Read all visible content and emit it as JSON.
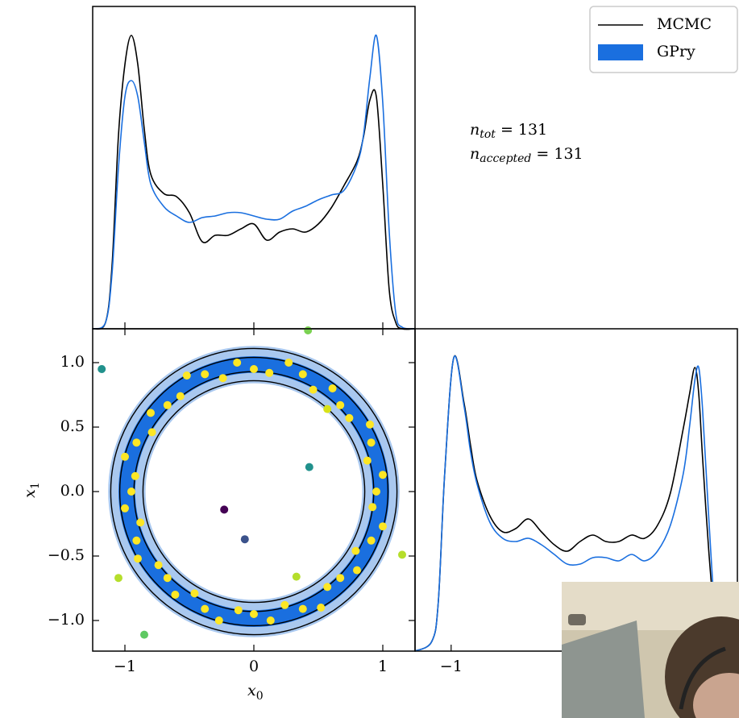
{
  "chart_data": [
    {
      "type": "line",
      "x": [
        -1.25,
        -1.15,
        -1.1,
        -1.05,
        -1,
        -0.95,
        -0.9,
        -0.85,
        -0.8,
        -0.7,
        -0.6,
        -0.5,
        -0.4,
        -0.3,
        -0.2,
        -0.1,
        0,
        0.1,
        0.2,
        0.3,
        0.4,
        0.5,
        0.6,
        0.7,
        0.8,
        0.85,
        0.9,
        0.95,
        1,
        1.05,
        1.1,
        1.15,
        1.25
      ],
      "series": [
        {
          "name": "MCMC",
          "color": "#000000",
          "values": [
            0,
            0.02,
            0.195,
            0.6,
            0.82,
            0.91,
            0.82,
            0.62,
            0.48,
            0.42,
            0.41,
            0.36,
            0.27,
            0.29,
            0.29,
            0.31,
            0.325,
            0.275,
            0.3,
            0.31,
            0.3,
            0.325,
            0.375,
            0.445,
            0.52,
            0.595,
            0.71,
            0.72,
            0.445,
            0.12,
            0.02,
            0,
            0
          ]
        },
        {
          "name": "GPry",
          "color": "#1a6fdf",
          "values": [
            0,
            0.02,
            0.17,
            0.5,
            0.72,
            0.77,
            0.72,
            0.58,
            0.45,
            0.38,
            0.35,
            0.33,
            0.345,
            0.35,
            0.36,
            0.36,
            0.35,
            0.34,
            0.34,
            0.365,
            0.38,
            0.4,
            0.415,
            0.43,
            0.51,
            0.6,
            0.78,
            0.91,
            0.7,
            0.3,
            0.05,
            0.005,
            0
          ]
        }
      ],
      "xlim": [
        -1.25,
        1.25
      ],
      "ylim": [
        0,
        1
      ],
      "xticks": [
        {
          "value": -1,
          "label": "−1"
        },
        0,
        1
      ],
      "legend": "upper right",
      "annotations": [
        {
          "symbol": "n",
          "subscript": "tot",
          "text": "= 131"
        },
        {
          "symbol": "n",
          "subscript": "accepted",
          "text": "= 131"
        }
      ]
    },
    {
      "type": "scatter",
      "xlabel": {
        "text": "x",
        "subscript": "0"
      },
      "ylabel": {
        "text": "x",
        "subscript": "1"
      },
      "xlim": [
        -1.25,
        1.25
      ],
      "ylim": [
        -1.2375,
        1.2625
      ],
      "xticks": [
        {
          "value": -1,
          "label": "−1"
        },
        0,
        1
      ],
      "yticks": [
        {
          "value": -1,
          "label": "−1.0"
        },
        {
          "value": -0.5,
          "label": "−0.5"
        },
        {
          "value": 0,
          "label": "0.0"
        },
        0.5,
        {
          "value": 1,
          "label": "1.0"
        }
      ],
      "filled_contours": [
        {
          "color": "#a9c8ef",
          "outer": 1.13,
          "inner": 0.84
        },
        {
          "color": "#1a6fdf",
          "outer": 1.05,
          "inner": 0.92
        }
      ],
      "line_contours": {
        "color": "#000000",
        "radii": [
          0.86,
          0.93,
          1.04,
          1.11
        ]
      },
      "points": {
        "x": [
          0.95,
          1.0,
          0.88,
          0.91,
          0.9,
          0.74,
          0.67,
          0.61,
          0.46,
          0.38,
          0.27,
          0.12,
          0,
          -0.13,
          -0.24,
          -0.38,
          -0.52,
          -0.57,
          -0.67,
          -0.8,
          -0.79,
          -0.91,
          -1.0,
          -0.92,
          -0.95,
          -1.0,
          -0.88,
          -0.91,
          -0.9,
          -0.74,
          -0.67,
          -0.61,
          -0.46,
          -0.38,
          -0.27,
          -0.12,
          0,
          0.13,
          0.24,
          0.38,
          0.52,
          0.57,
          0.67,
          0.8,
          0.79,
          0.91,
          1.0,
          0.92,
          -1.18,
          0.43,
          -0.23,
          -0.07,
          -1.05,
          -0.85,
          0.33,
          1.15,
          0.42,
          0.57
        ],
        "y": [
          0,
          0.13,
          0.24,
          0.38,
          0.52,
          0.57,
          0.67,
          0.8,
          0.79,
          0.91,
          1.0,
          0.92,
          0.95,
          1.0,
          0.88,
          0.91,
          0.9,
          0.74,
          0.67,
          0.61,
          0.46,
          0.38,
          0.27,
          0.12,
          0,
          -0.13,
          -0.24,
          -0.38,
          -0.52,
          -0.57,
          -0.67,
          -0.8,
          -0.79,
          -0.91,
          -1.0,
          -0.92,
          -0.95,
          -1.0,
          -0.88,
          -0.91,
          -0.9,
          -0.74,
          -0.67,
          -0.61,
          -0.46,
          -0.38,
          -0.27,
          -0.12,
          0.95,
          0.19,
          -0.14,
          -0.37,
          -0.67,
          -1.11,
          -0.66,
          -0.49,
          1.25,
          0.64
        ],
        "colors": [
          "#fde725",
          "#fde725",
          "#fde725",
          "#fde725",
          "#fde725",
          "#fde725",
          "#fde725",
          "#fde725",
          "#fde725",
          "#fde725",
          "#fde725",
          "#fde725",
          "#fde725",
          "#fde725",
          "#fde725",
          "#fde725",
          "#fde725",
          "#fde725",
          "#fde725",
          "#fde725",
          "#fde725",
          "#fde725",
          "#fde725",
          "#fde725",
          "#fde725",
          "#fde725",
          "#fde725",
          "#fde725",
          "#fde725",
          "#fde725",
          "#fde725",
          "#fde725",
          "#fde725",
          "#fde725",
          "#fde725",
          "#fde725",
          "#fde725",
          "#fde725",
          "#fde725",
          "#fde725",
          "#fde725",
          "#fde725",
          "#fde725",
          "#fde725",
          "#fde725",
          "#fde725",
          "#fde725",
          "#fde725",
          "#21918c",
          "#21918c",
          "#440154",
          "#3b528b",
          "#b5de2b",
          "#5ec962",
          "#b5de2b",
          "#b5de2b",
          "#7ad151",
          "#d8e219"
        ]
      }
    },
    {
      "type": "line",
      "x": [
        -1.28,
        -1.15,
        -1.1,
        -1.05,
        -0.98,
        -0.9,
        -0.85,
        -0.8,
        -0.7,
        -0.6,
        -0.5,
        -0.4,
        -0.3,
        -0.2,
        -0.1,
        0,
        0.1,
        0.2,
        0.3,
        0.4,
        0.5,
        0.6,
        0.7,
        0.8,
        0.85,
        0.89,
        0.92,
        0.95,
        1.0,
        1.05,
        1.1,
        1.22
      ],
      "series": [
        {
          "color": "#000000",
          "values": [
            0,
            0.03,
            0.15,
            0.55,
            0.91,
            0.77,
            0.64,
            0.53,
            0.42,
            0.37,
            0.38,
            0.41,
            0.37,
            0.33,
            0.31,
            0.34,
            0.36,
            0.34,
            0.34,
            0.36,
            0.35,
            0.39,
            0.49,
            0.69,
            0.8,
            0.88,
            0.8,
            0.6,
            0.3,
            0.08,
            0.02,
            0
          ]
        },
        {
          "color": "#1a6fdf",
          "values": [
            0,
            0.03,
            0.15,
            0.55,
            0.91,
            0.76,
            0.62,
            0.52,
            0.4,
            0.35,
            0.34,
            0.35,
            0.33,
            0.3,
            0.27,
            0.27,
            0.29,
            0.29,
            0.28,
            0.3,
            0.28,
            0.31,
            0.39,
            0.55,
            0.7,
            0.84,
            0.88,
            0.75,
            0.4,
            0.1,
            0.02,
            0
          ]
        }
      ],
      "xlim": [
        -1.28,
        1.22
      ],
      "ylim": [
        0,
        1
      ],
      "xticks": [
        {
          "value": -1,
          "label": "−1"
        }
      ]
    }
  ]
}
